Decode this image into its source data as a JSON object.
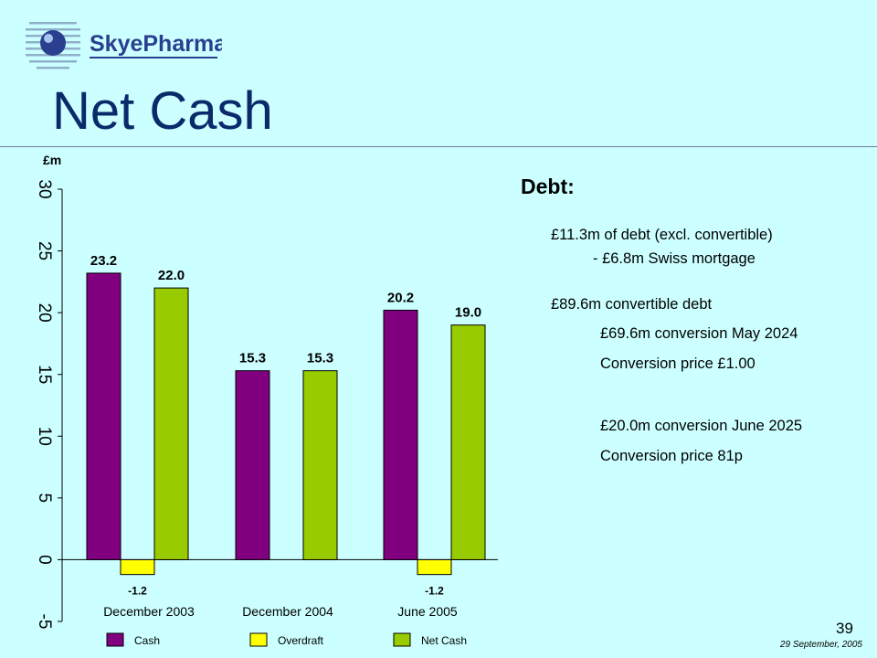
{
  "header": {
    "logo_text": "SkyePharma",
    "title": "Net Cash"
  },
  "chart_data": {
    "type": "bar",
    "unit_label": "£m",
    "categories": [
      "December 2003",
      "December 2004",
      "June 2005"
    ],
    "series": [
      {
        "name": "Cash",
        "color": "#800080",
        "values": [
          23.2,
          15.3,
          20.2
        ]
      },
      {
        "name": "Overdraft",
        "color": "#ffff00",
        "values": [
          -1.2,
          null,
          -1.2
        ]
      },
      {
        "name": "Net Cash",
        "color": "#99cc00",
        "values": [
          22.0,
          15.3,
          19.0
        ]
      }
    ],
    "data_labels": {
      "Cash": [
        "23.2",
        "15.3",
        "20.2"
      ],
      "Overdraft": [
        "-1.2",
        "",
        "-1.2"
      ],
      "Net Cash": [
        "22.0",
        "15.3",
        "19.0"
      ]
    },
    "yticks": [
      "-5",
      "0",
      "5",
      "10",
      "15",
      "20",
      "25",
      "30"
    ],
    "ylim": [
      -5,
      30
    ],
    "legend_position": "bottom",
    "grid": false
  },
  "debt": {
    "heading": "Debt:",
    "lines": [
      "£11.3m of debt (excl. convertible)",
      "- £6.8m Swiss mortgage",
      "£89.6m convertible debt",
      "£69.6m conversion May 2024",
      "Conversion price £1.00",
      "£20.0m conversion June 2025",
      "Conversion price 81p"
    ]
  },
  "footer": {
    "page_number": "39",
    "date": "29 September, 2005"
  }
}
